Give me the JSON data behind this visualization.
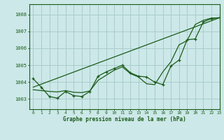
{
  "title": "Graphe pression niveau de la mer (hPa)",
  "bg_color": "#cce8e8",
  "line_color": "#1a5c1a",
  "grid_color": "#aacccc",
  "xlim": [
    -0.5,
    23
  ],
  "ylim": [
    1002.4,
    1008.6
  ],
  "yticks": [
    1003,
    1004,
    1005,
    1006,
    1007,
    1008
  ],
  "xticks": [
    0,
    1,
    2,
    3,
    4,
    5,
    6,
    7,
    8,
    9,
    10,
    11,
    12,
    13,
    14,
    15,
    16,
    17,
    18,
    19,
    20,
    21,
    22,
    23
  ],
  "series_marker_x": [
    0,
    1,
    2,
    3,
    4,
    5,
    6,
    7,
    8,
    9,
    10,
    11,
    12,
    13,
    14,
    15,
    16,
    17,
    18,
    19,
    20,
    21,
    22,
    23
  ],
  "series_marker_y": [
    1004.2,
    1003.7,
    1003.15,
    1003.05,
    1003.45,
    1003.2,
    1003.15,
    1003.45,
    1004.35,
    1004.6,
    1004.8,
    1005.0,
    1004.55,
    1004.35,
    1004.3,
    1004.0,
    1003.85,
    1004.95,
    1005.3,
    1006.5,
    1006.55,
    1007.55,
    1007.75,
    1007.8
  ],
  "series_smooth_x": [
    0,
    1,
    2,
    3,
    4,
    5,
    6,
    7,
    8,
    9,
    10,
    11,
    12,
    13,
    14,
    15,
    16,
    17,
    18,
    19,
    20,
    21,
    22,
    23
  ],
  "series_smooth_y": [
    1003.55,
    1003.5,
    1003.45,
    1003.42,
    1003.5,
    1003.4,
    1003.38,
    1003.48,
    1004.1,
    1004.4,
    1004.7,
    1004.9,
    1004.5,
    1004.3,
    1003.9,
    1003.85,
    1004.6,
    1005.2,
    1006.2,
    1006.45,
    1007.4,
    1007.65,
    1007.78,
    1007.8
  ],
  "trend_x": [
    0,
    23
  ],
  "trend_y": [
    1003.7,
    1007.8
  ]
}
